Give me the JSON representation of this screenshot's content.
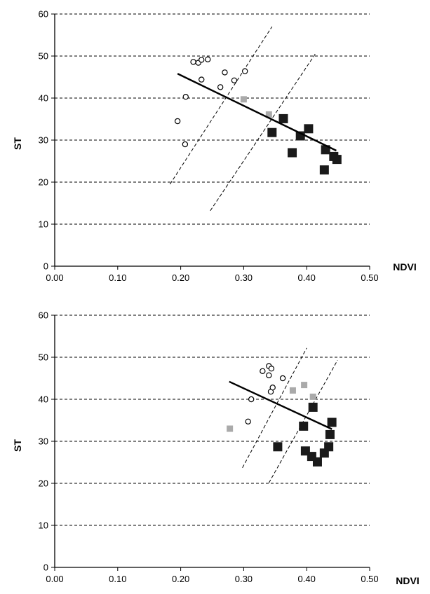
{
  "chart_data": [
    {
      "type": "scatter",
      "xlabel": "NDVI",
      "ylabel": "ST",
      "xlim": [
        0,
        0.5
      ],
      "ylim": [
        0,
        60
      ],
      "xticks": [
        "0.00",
        "0.10",
        "0.20",
        "0.30",
        "0.40",
        "0.50"
      ],
      "yticks": [
        "0",
        "10",
        "20",
        "30",
        "40",
        "50",
        "60"
      ],
      "grid": "horizontal dashed",
      "series": [
        {
          "marker": "open-circle",
          "color": "#000000",
          "points": [
            [
              0.195,
              34.5
            ],
            [
              0.207,
              29.0
            ],
            [
              0.208,
              40.3
            ],
            [
              0.22,
              48.6
            ],
            [
              0.228,
              48.4
            ],
            [
              0.233,
              49.1
            ],
            [
              0.243,
              49.2
            ],
            [
              0.233,
              44.4
            ],
            [
              0.263,
              42.6
            ],
            [
              0.27,
              46.1
            ],
            [
              0.285,
              44.2
            ],
            [
              0.302,
              46.4
            ]
          ]
        },
        {
          "marker": "grey-square",
          "color": "#aaaaaa",
          "points": [
            [
              0.3,
              39.7
            ],
            [
              0.34,
              36.1
            ]
          ]
        },
        {
          "marker": "black-square",
          "color": "#1a1a1a",
          "points": [
            [
              0.345,
              31.8
            ],
            [
              0.363,
              35.1
            ],
            [
              0.377,
              27.0
            ],
            [
              0.39,
              31.0
            ],
            [
              0.403,
              32.7
            ],
            [
              0.428,
              22.9
            ],
            [
              0.43,
              27.7
            ],
            [
              0.443,
              26.1
            ],
            [
              0.448,
              25.4
            ]
          ]
        }
      ],
      "fit_line": [
        [
          0.195,
          45.8
        ],
        [
          0.447,
          27.5
        ]
      ],
      "boundary_lines": [
        [
          [
            0.183,
            19.5
          ],
          [
            0.345,
            57.0
          ]
        ],
        [
          [
            0.247,
            13.2
          ],
          [
            0.415,
            50.8
          ]
        ]
      ]
    },
    {
      "type": "scatter",
      "xlabel": "NDVI",
      "ylabel": "ST",
      "xlim": [
        0,
        0.5
      ],
      "ylim": [
        0,
        60
      ],
      "xticks": [
        "0.00",
        "0.10",
        "0.20",
        "0.30",
        "0.40",
        "0.50"
      ],
      "yticks": [
        "0",
        "10",
        "20",
        "30",
        "40",
        "50",
        "60"
      ],
      "grid": "horizontal dashed",
      "series": [
        {
          "marker": "open-circle",
          "color": "#000000",
          "points": [
            [
              0.307,
              34.7
            ],
            [
              0.312,
              40.0
            ],
            [
              0.33,
              46.7
            ],
            [
              0.34,
              47.9
            ],
            [
              0.34,
              45.7
            ],
            [
              0.344,
              47.3
            ],
            [
              0.343,
              41.8
            ],
            [
              0.346,
              42.8
            ],
            [
              0.362,
              45.0
            ]
          ]
        },
        {
          "marker": "grey-square",
          "color": "#aaaaaa",
          "points": [
            [
              0.278,
              33.0
            ],
            [
              0.378,
              42.1
            ],
            [
              0.396,
              43.4
            ],
            [
              0.41,
              40.6
            ]
          ]
        },
        {
          "marker": "black-square",
          "color": "#1a1a1a",
          "points": [
            [
              0.354,
              28.7
            ],
            [
              0.395,
              33.6
            ],
            [
              0.398,
              27.7
            ],
            [
              0.408,
              26.4
            ],
            [
              0.41,
              38.1
            ],
            [
              0.417,
              25.1
            ],
            [
              0.428,
              27.2
            ],
            [
              0.435,
              28.7
            ],
            [
              0.437,
              31.6
            ],
            [
              0.44,
              34.5
            ]
          ]
        }
      ],
      "fit_line": [
        [
          0.277,
          44.2
        ],
        [
          0.44,
          32.9
        ]
      ],
      "boundary_lines": [
        [
          [
            0.298,
            23.7
          ],
          [
            0.4,
            52.2
          ]
        ],
        [
          [
            0.34,
            20.1
          ],
          [
            0.449,
            49.3
          ]
        ]
      ]
    }
  ]
}
